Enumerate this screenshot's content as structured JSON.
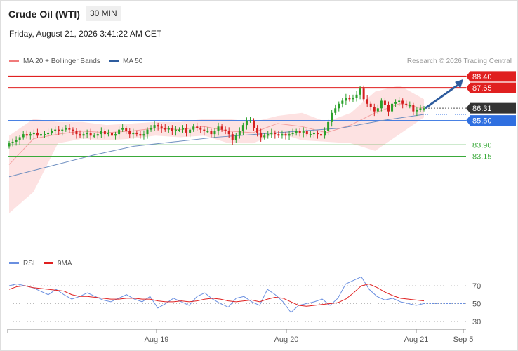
{
  "header": {
    "instrument": "Crude Oil (WTI)",
    "timeframe": "30 MIN",
    "datetime": "Friday, August 21, 2026 3:41:22 AM CET"
  },
  "main_chart": {
    "legend": [
      {
        "label": "MA 20 + Bollinger Bands",
        "color": "#f07a7a"
      },
      {
        "label": "MA 50",
        "color": "#2e5c9e"
      }
    ],
    "source_note": "Research © 2026 Trading Central"
  },
  "rsi_panel": {
    "legend": [
      {
        "label": "RSI",
        "color": "#6a8fe0"
      },
      {
        "label": "9MA",
        "color": "#e02020"
      }
    ]
  },
  "colors": {
    "candle_up": "#2aa02a",
    "candle_down": "#d42020",
    "resistance": "#e02020",
    "support_pivot": "#2f6fe0",
    "support": "#3aaa3a",
    "band_fill": "#fde2e2",
    "arrow": "#2e5c9e",
    "price_tag": "#333333"
  },
  "chart_data": [
    {
      "type": "candlestick",
      "ylim": [
        76.8,
        88.9
      ],
      "x_ticks": [
        "Aug 19",
        "Aug 20",
        "Aug 21",
        "Sep 5"
      ],
      "levels": [
        {
          "value": 88.4,
          "label": "88.40",
          "kind": "resistance"
        },
        {
          "value": 87.65,
          "label": "87.65",
          "kind": "resistance"
        },
        {
          "value": 86.31,
          "label": "86.31",
          "kind": "last_price"
        },
        {
          "value": 85.5,
          "label": "85.50",
          "kind": "pivot"
        },
        {
          "value": 83.9,
          "label": "83.90",
          "kind": "support"
        },
        {
          "value": 83.15,
          "label": "83.15",
          "kind": "support"
        }
      ],
      "close_series": [
        84.0,
        84.1,
        84.2,
        84.4,
        84.6,
        84.5,
        84.6,
        84.7,
        84.5,
        84.6,
        84.6,
        84.7,
        84.8,
        84.9,
        84.8,
        84.9,
        85.0,
        84.9,
        84.8,
        84.6,
        84.5,
        84.6,
        84.7,
        84.5,
        84.5,
        84.6,
        84.8,
        84.6,
        84.7,
        84.5,
        84.6,
        84.9,
        85.0,
        84.8,
        84.6,
        84.7,
        84.6,
        84.5,
        84.6,
        84.9,
        85.0,
        85.2,
        85.1,
        85.0,
        84.9,
        85.0,
        84.8,
        84.9,
        84.9,
        85.0,
        84.7,
        84.9,
        85.1,
        85.0,
        84.9,
        84.8,
        84.8,
        84.6,
        84.8,
        85.1,
        84.9,
        84.8,
        84.6,
        84.2,
        84.5,
        84.8,
        85.2,
        85.5,
        85.5,
        85.0,
        84.7,
        84.4,
        84.5,
        84.6,
        84.7,
        84.6,
        84.5,
        84.6,
        84.5,
        84.6,
        84.7,
        84.8,
        84.7,
        84.8,
        84.6,
        84.6,
        84.7,
        84.6,
        84.5,
        84.8,
        85.4,
        86.0,
        86.3,
        86.6,
        86.8,
        87.0,
        86.9,
        87.0,
        87.2,
        87.6,
        86.9,
        86.6,
        86.4,
        86.1,
        86.3,
        86.8,
        86.5,
        86.1,
        86.6,
        86.7,
        86.8,
        86.6,
        86.5,
        86.5,
        86.1,
        86.2,
        86.3,
        86.3
      ],
      "ma50": [
        81.8,
        82.5,
        83.2,
        83.8,
        84.1,
        84.4,
        84.6,
        84.8,
        85.0,
        85.5,
        85.9
      ],
      "ma20_bollinger": {
        "ma": [
          82.6,
          84.3,
          84.6,
          84.8,
          84.7,
          84.8,
          85.0,
          84.9,
          85.1,
          84.8,
          84.7,
          85.3,
          85.1,
          84.7,
          85.2,
          86.0,
          86.6,
          86.3
        ],
        "upper": [
          84.5,
          85.6,
          85.4,
          85.4,
          85.2,
          85.3,
          85.4,
          85.4,
          85.6,
          85.6,
          85.4,
          85.8,
          86.0,
          85.4,
          86.0,
          87.4,
          87.8,
          86.9
        ],
        "lower": [
          79.4,
          80.8,
          84.0,
          84.3,
          84.2,
          84.3,
          84.5,
          84.4,
          84.5,
          84.0,
          84.0,
          84.7,
          84.2,
          84.1,
          84.0,
          83.5,
          84.6,
          85.7
        ]
      }
    },
    {
      "type": "line",
      "title": "RSI",
      "ylim": [
        22,
        85
      ],
      "y_ticks": [
        70,
        50,
        30
      ],
      "series": [
        {
          "name": "RSI",
          "values": [
            70,
            72,
            70,
            68,
            64,
            60,
            66,
            60,
            55,
            58,
            62,
            58,
            54,
            52,
            56,
            60,
            55,
            52,
            58,
            45,
            50,
            56,
            52,
            48,
            58,
            62,
            55,
            50,
            46,
            56,
            58,
            52,
            48,
            66,
            60,
            52,
            40,
            48,
            50,
            52,
            55,
            48,
            56,
            72,
            76,
            80,
            66,
            58,
            54,
            56,
            52,
            50,
            48,
            50
          ]
        },
        {
          "name": "9MA",
          "values": [
            66,
            69,
            70,
            68,
            67,
            66,
            65,
            64,
            60,
            58,
            58,
            57,
            56,
            55,
            55,
            56,
            56,
            55,
            55,
            53,
            52,
            52,
            53,
            52,
            53,
            55,
            56,
            55,
            53,
            52,
            53,
            54,
            52,
            55,
            57,
            56,
            52,
            48,
            47,
            48,
            49,
            50,
            51,
            55,
            62,
            70,
            72,
            68,
            63,
            59,
            56,
            55,
            54,
            53
          ]
        }
      ]
    }
  ]
}
